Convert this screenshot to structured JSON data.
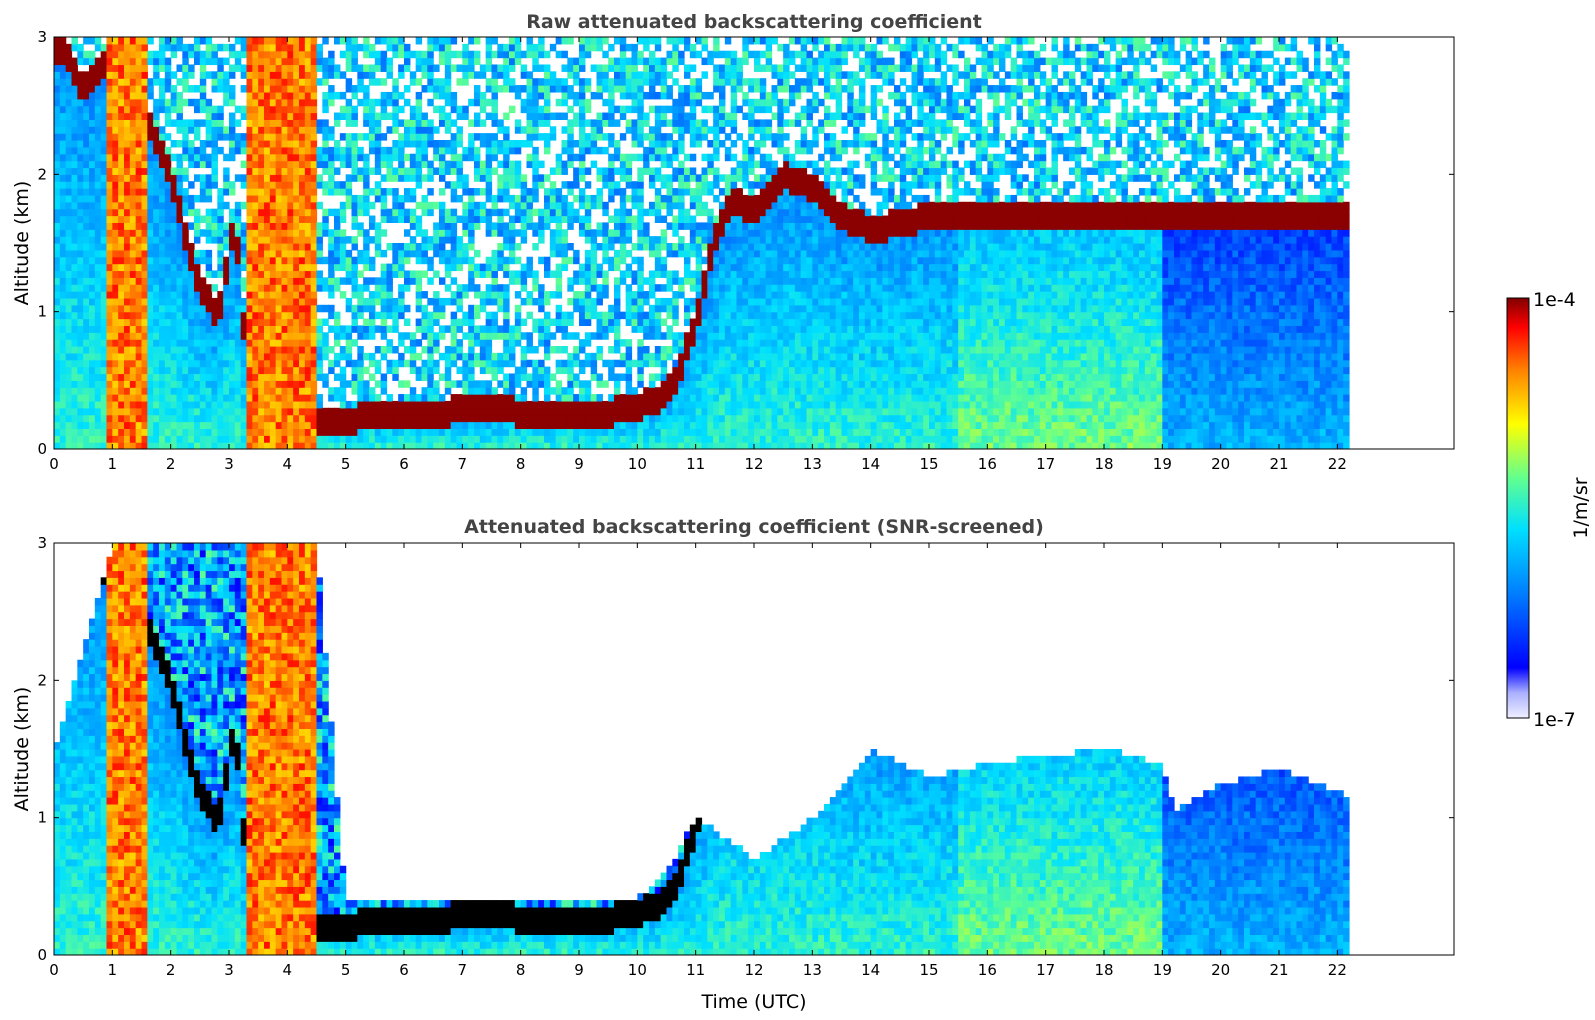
{
  "chart_data": [
    {
      "type": "heatmap",
      "title": "Raw attenuated backscattering coefficient",
      "xlabel": "",
      "ylabel": "Altitude (km)",
      "xlim": [
        0,
        24
      ],
      "ylim": [
        0,
        3
      ],
      "x_ticks": [
        "0",
        "1",
        "2",
        "3",
        "4",
        "5",
        "6",
        "7",
        "8",
        "9",
        "10",
        "11",
        "12",
        "13",
        "14",
        "15",
        "16",
        "17",
        "18",
        "19",
        "20",
        "21",
        "22"
      ],
      "y_ticks": [
        "0",
        "1",
        "2",
        "3"
      ],
      "data_x_range": [
        0,
        22.2
      ],
      "colorscale": "jet",
      "screened": false,
      "cloud_base_line": {
        "x": [
          0.2,
          0.5,
          1.0,
          1.6,
          2.0,
          2.4,
          2.8,
          3.1,
          3.3,
          3.6,
          4.0,
          4.3,
          4.6,
          5.0,
          6.0,
          7.0,
          7.5,
          8.0,
          9.0,
          9.8,
          10.3,
          10.7,
          11.0,
          11.3,
          11.6,
          12.0,
          12.5,
          13.0,
          13.5,
          14.0,
          14.5,
          15.0
        ],
        "y": [
          2.9,
          2.6,
          2.9,
          2.4,
          2.0,
          1.3,
          0.95,
          1.7,
          0.6,
          0.35,
          0.3,
          0.25,
          0.2,
          0.22,
          0.25,
          0.28,
          0.3,
          0.27,
          0.26,
          0.28,
          0.35,
          0.55,
          0.9,
          1.5,
          1.8,
          1.75,
          2.0,
          1.9,
          1.7,
          1.6,
          1.65,
          1.7
        ]
      }
    },
    {
      "type": "heatmap",
      "title": "Attenuated backscattering coefficient (SNR-screened)",
      "xlabel": "Time (UTC)",
      "ylabel": "Altitude (km)",
      "xlim": [
        0,
        24
      ],
      "ylim": [
        0,
        3
      ],
      "x_ticks": [
        "0",
        "1",
        "2",
        "3",
        "4",
        "5",
        "6",
        "7",
        "8",
        "9",
        "10",
        "11",
        "12",
        "13",
        "14",
        "15",
        "16",
        "17",
        "18",
        "19",
        "20",
        "21",
        "22"
      ],
      "y_ticks": [
        "0",
        "1",
        "2",
        "3"
      ],
      "data_x_range": [
        0,
        22.2
      ],
      "colorscale": "jet",
      "screened": true,
      "signal_top_km": {
        "x": [
          0,
          1,
          2,
          3,
          4.5,
          5,
          6,
          7,
          8,
          9,
          10,
          10.5,
          11,
          12,
          13,
          14,
          15,
          16,
          17,
          18,
          19,
          19.2,
          20,
          21,
          22,
          22.2
        ],
        "y": [
          1.45,
          3.0,
          3.0,
          3.0,
          3.0,
          0.38,
          0.38,
          0.42,
          0.38,
          0.38,
          0.42,
          0.6,
          1.0,
          0.7,
          1.0,
          1.5,
          1.3,
          1.4,
          1.45,
          1.5,
          1.4,
          1.05,
          1.25,
          1.35,
          1.2,
          1.15
        ]
      }
    }
  ],
  "colorbar": {
    "label": "1/m/sr",
    "max_label": "1e-4",
    "min_label": "1e-7"
  },
  "colors": {
    "axis": "#000000",
    "title": "#444444",
    "cloud": "#8b0000",
    "cloud_screened": "#000000"
  }
}
